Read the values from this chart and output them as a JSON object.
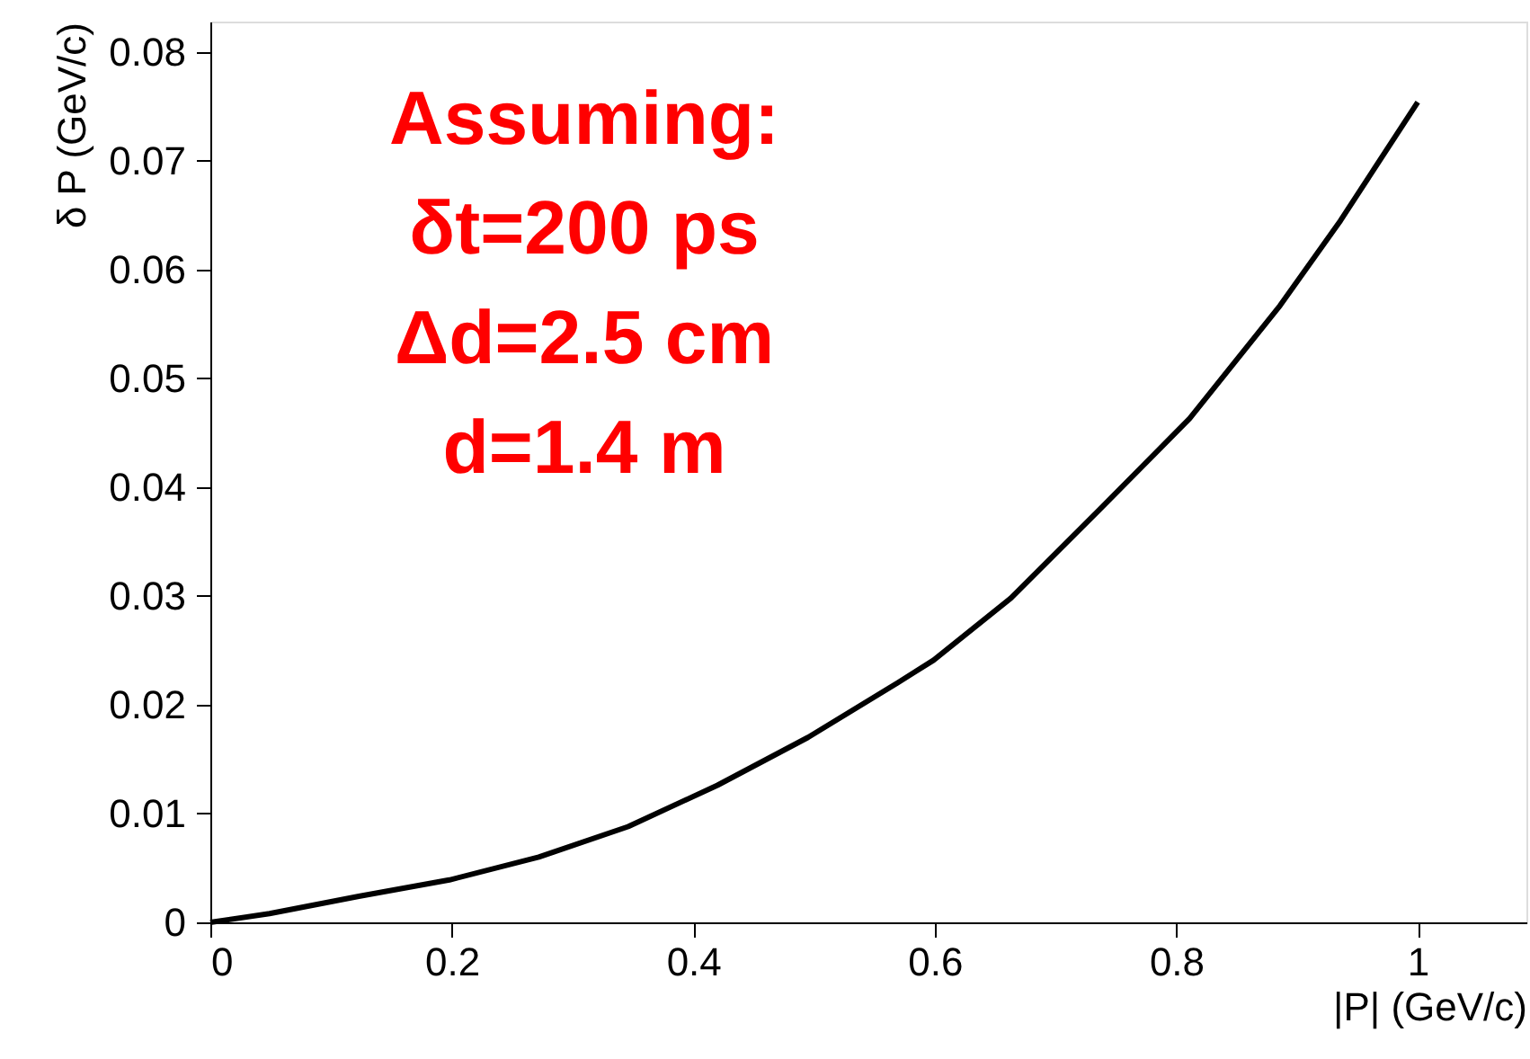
{
  "chart_data": {
    "type": "line",
    "xlabel": "|P| (GeV/c)",
    "ylabel": "δ P (GeV/c)",
    "x": [
      0,
      0.049,
      0.123,
      0.198,
      0.272,
      0.346,
      0.42,
      0.495,
      0.569,
      0.599,
      0.663,
      0.737,
      0.811,
      0.886,
      0.936,
      1.0
    ],
    "series": [
      {
        "color": "#000000",
        "values": [
          0,
          0.0008,
          0.0024,
          0.0039,
          0.006,
          0.0088,
          0.0126,
          0.017,
          0.022,
          0.0241,
          0.0298,
          0.038,
          0.0463,
          0.0567,
          0.0645,
          0.0754
        ]
      }
    ],
    "xlim": [
      0,
      1.09
    ],
    "ylim": [
      0,
      0.0828
    ],
    "xticks": [
      0,
      0.2,
      0.4,
      0.6,
      0.8,
      1
    ],
    "yticks": [
      0,
      0.01,
      0.02,
      0.03,
      0.04,
      0.05,
      0.06,
      0.07,
      0.08
    ],
    "annotations": [
      "Assuming:",
      "δt=200 ps",
      "Δd=2.5 cm",
      "d=1.4 m"
    ],
    "grid": false,
    "marker": "none",
    "line_style": "solid"
  }
}
